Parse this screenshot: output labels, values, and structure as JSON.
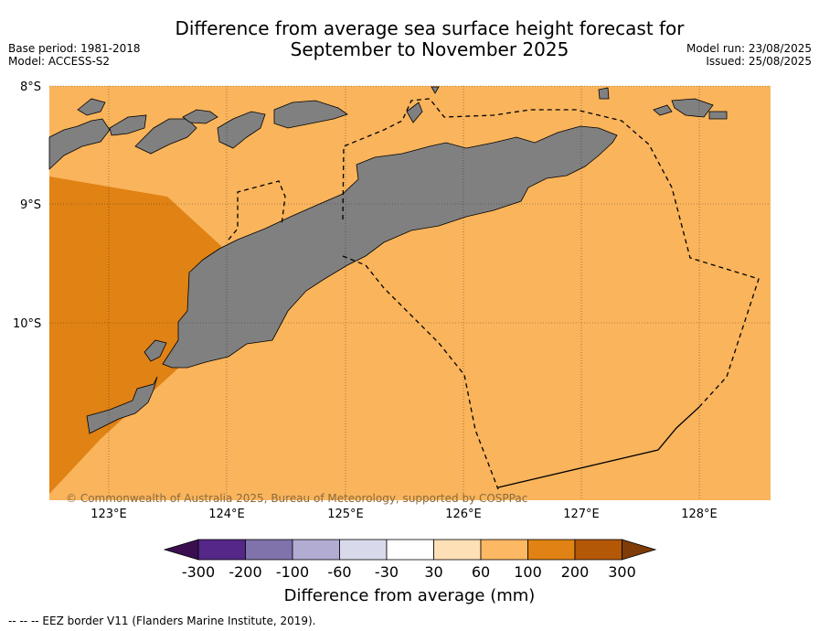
{
  "title_line1": "Difference from average sea surface height forecast for",
  "title_line2": "September to November 2025",
  "meta": {
    "base_period": "Base period: 1981-2018",
    "model": "Model: ACCESS-S2",
    "model_run": "Model run: 23/08/2025",
    "issued": "Issued: 25/08/2025"
  },
  "map": {
    "lat_labels": [
      "8°S",
      "9°S",
      "10°S"
    ],
    "lon_labels": [
      "123°E",
      "124°E",
      "125°E",
      "126°E",
      "127°E",
      "128°E"
    ],
    "copyright": "© Commonwealth of Australia 2025, Bureau of Meteorology, supported by COSPPac",
    "colors": {
      "sea_60_100": "#f9b45c",
      "sea_100_200": "#e08214",
      "land": "#808080"
    }
  },
  "colorbar": {
    "ticks": [
      "-300",
      "-200",
      "-100",
      "-60",
      "-30",
      "30",
      "60",
      "100",
      "200",
      "300"
    ],
    "colors": [
      "#3b0f4f",
      "#542788",
      "#8073ac",
      "#b2abd2",
      "#d8daeb",
      "#ffffff",
      "#fee0b6",
      "#fdb863",
      "#e08214",
      "#b35806",
      "#7f3b08"
    ],
    "label": "Difference from average (mm)"
  },
  "footer": "--  --  -- EEZ border V11 (Flanders Marine Institute, 2019)."
}
